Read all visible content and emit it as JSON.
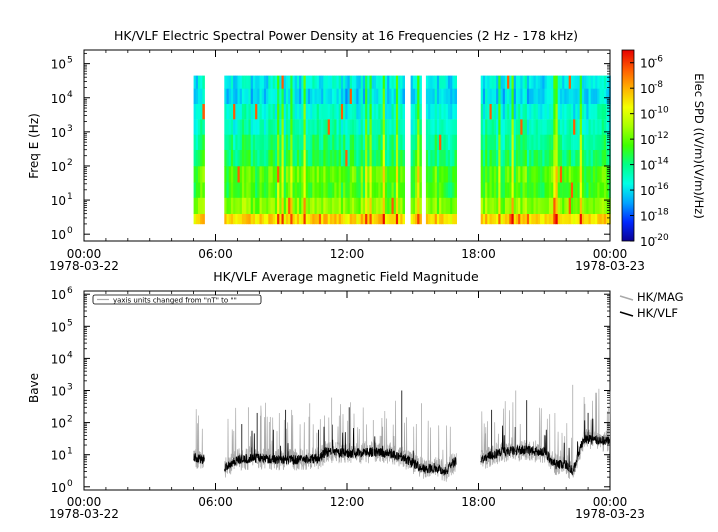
{
  "chart_data": [
    {
      "type": "heatmap",
      "title": "HK/VLF  Electric Spectral Power Density at 16 Frequencies (2 Hz - 178 kHz)",
      "ylabel": "Freq E (Hz)",
      "ylabel_exponent": "",
      "y_scale": "log",
      "ylim_exp": [
        -0.2,
        5.4
      ],
      "y_ticks": [
        {
          "base": "10",
          "exp": "0"
        },
        {
          "base": "10",
          "exp": "1"
        },
        {
          "base": "10",
          "exp": "2"
        },
        {
          "base": "10",
          "exp": "3"
        },
        {
          "base": "10",
          "exp": "4"
        },
        {
          "base": "10",
          "exp": "5"
        }
      ],
      "x_range_hours": [
        0,
        24
      ],
      "x_ticks": [
        {
          "hour": 0,
          "label": "00:00",
          "date": "1978-03-22"
        },
        {
          "hour": 6,
          "label": "06:00",
          "date": ""
        },
        {
          "hour": 12,
          "label": "12:00",
          "date": ""
        },
        {
          "hour": 18,
          "label": "18:00",
          "date": ""
        },
        {
          "hour": 24,
          "label": "00:00",
          "date": "1978-03-23"
        }
      ],
      "colorbar": {
        "label": "Elec SPD ((V/m)(V/m)/Hz)",
        "range_exp": [
          -20,
          -5
        ],
        "ticks": [
          {
            "base": "10",
            "exp": "-6"
          },
          {
            "base": "10",
            "exp": "-8"
          },
          {
            "base": "10",
            "exp": "-10"
          },
          {
            "base": "10",
            "exp": "-12"
          },
          {
            "base": "10",
            "exp": "-14"
          },
          {
            "base": "10",
            "exp": "-16"
          },
          {
            "base": "10",
            "exp": "-18"
          },
          {
            "base": "10",
            "exp": "-20"
          }
        ],
        "colors": [
          "#0b0096",
          "#0028ff",
          "#00a4ff",
          "#00ffe6",
          "#00ff88",
          "#3fff00",
          "#a8ff00",
          "#f4ff00",
          "#ffb000",
          "#ff5a00",
          "#e60000"
        ]
      },
      "freq_bands_exp": [
        0.35,
        0.85,
        1.3,
        1.75,
        2.25,
        2.7,
        3.15,
        3.6,
        4.05,
        4.5
      ],
      "band_levels_exp": [
        -8.8,
        -11.5,
        -12.6,
        -12.3,
        -13.6,
        -14.1,
        -14.8,
        -15.2,
        -16.0,
        -15.6
      ],
      "segments_hours": [
        [
          5.0,
          5.5
        ],
        [
          6.4,
          14.6
        ],
        [
          14.9,
          15.4
        ],
        [
          15.6,
          17.0
        ],
        [
          18.1,
          24.0
        ]
      ],
      "data_present_hours": [
        5.0,
        24.0
      ]
    },
    {
      "type": "line",
      "title": "HK/VLF  Average magnetic Field Magnitude",
      "ylabel": "Bave",
      "y_scale": "log",
      "ylim_exp": [
        -0.1,
        6.1
      ],
      "y_ticks": [
        {
          "base": "10",
          "exp": "0"
        },
        {
          "base": "10",
          "exp": "1"
        },
        {
          "base": "10",
          "exp": "2"
        },
        {
          "base": "10",
          "exp": "3"
        },
        {
          "base": "10",
          "exp": "4"
        },
        {
          "base": "10",
          "exp": "5"
        },
        {
          "base": "10",
          "exp": "6"
        }
      ],
      "x_range_hours": [
        0,
        24
      ],
      "x_ticks": [
        {
          "hour": 0,
          "label": "00:00",
          "date": "1978-03-22"
        },
        {
          "hour": 6,
          "label": "06:00",
          "date": ""
        },
        {
          "hour": 12,
          "label": "12:00",
          "date": ""
        },
        {
          "hour": 18,
          "label": "18:00",
          "date": ""
        },
        {
          "hour": 24,
          "label": "00:00",
          "date": "1978-03-23"
        }
      ],
      "annotation": "yaxis units changed from \"nT\" to \"\"",
      "legend_position": "right",
      "series": [
        {
          "name": "HK/MAG",
          "color": "#a9a9a9"
        },
        {
          "name": "HK/VLF",
          "color": "#000000"
        }
      ],
      "baseline_hours": [
        5.0,
        5.5,
        6.4,
        7.0,
        8.0,
        9.0,
        10.0,
        10.8,
        11.0,
        12.0,
        13.0,
        14.0,
        14.6,
        15.5,
        16.0,
        16.5,
        17.0,
        18.1,
        19.0,
        20.0,
        21.0,
        21.5,
        22.0,
        22.3,
        22.8,
        23.5,
        24.0
      ],
      "baseline_values": [
        8,
        7,
        4,
        7,
        8,
        7,
        7,
        8,
        12,
        11,
        12,
        11,
        8,
        3.5,
        4,
        3,
        7,
        7,
        12,
        14,
        12,
        5,
        5,
        3,
        30,
        28,
        27
      ],
      "spikes_hours": [
        7.2,
        7.5,
        7.9,
        8.5,
        9.2,
        10.3,
        10.7,
        11.3,
        12.1,
        13.2,
        14.5,
        15.4,
        18.6,
        19.7,
        20.2,
        22.3,
        23.0
      ],
      "spike_values": [
        90,
        300,
        200,
        150,
        250,
        400,
        60,
        600,
        300,
        120,
        1000,
        400,
        250,
        1000,
        500,
        1500,
        200
      ]
    }
  ]
}
